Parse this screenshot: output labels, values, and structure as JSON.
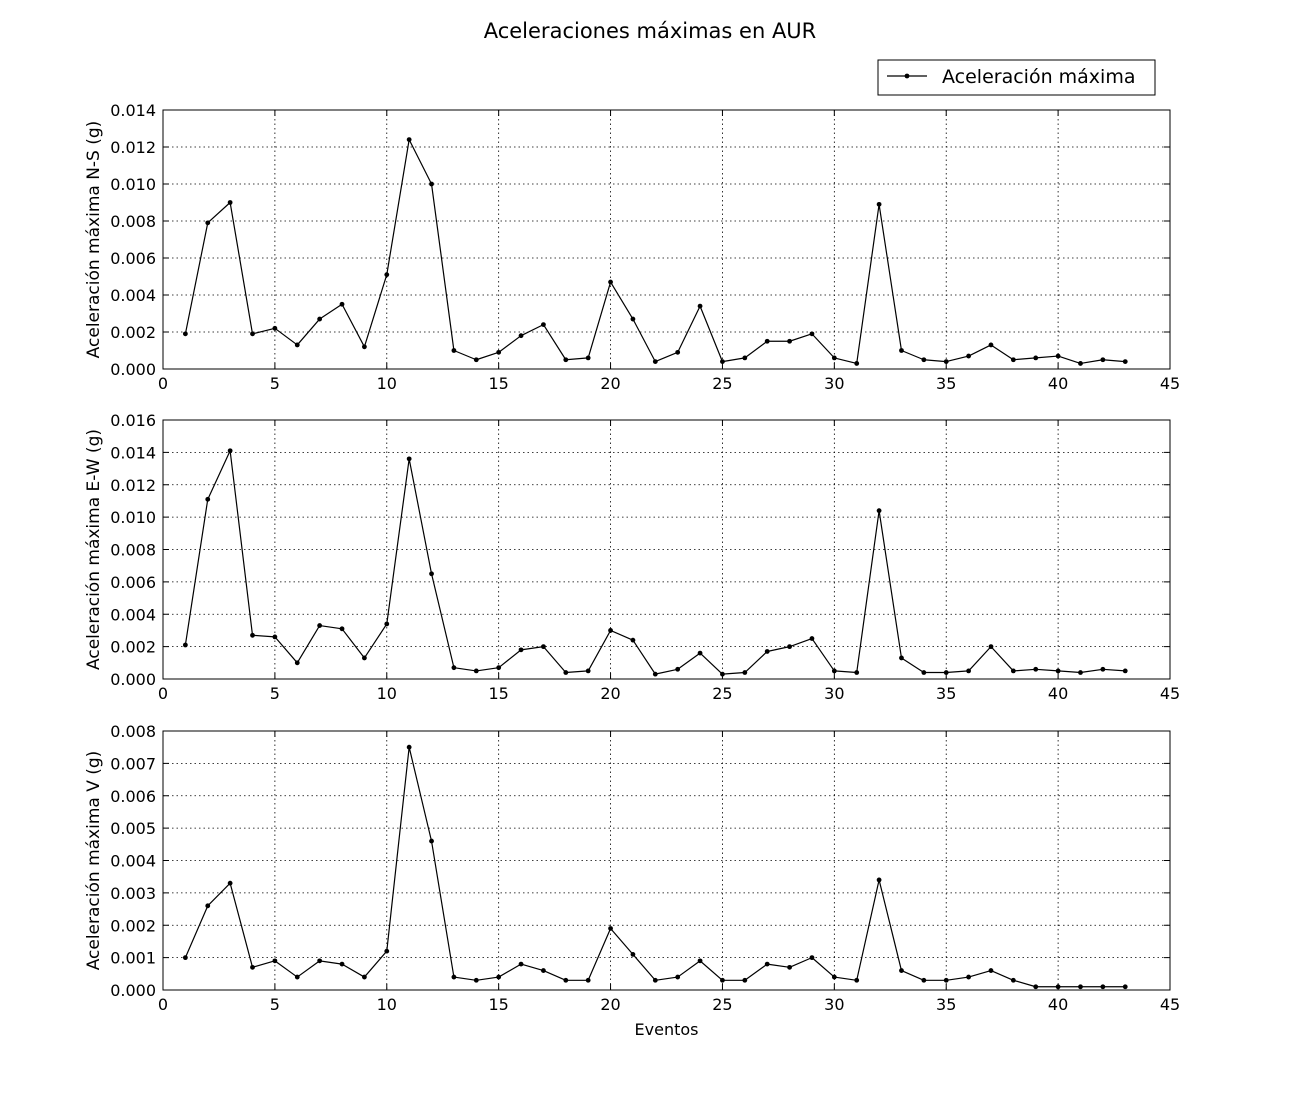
{
  "figure": {
    "title": "Aceleraciones máximas en AUR",
    "legend": {
      "label": "Aceleración máxima",
      "placement": "top-right"
    },
    "xlabel": "Eventos"
  },
  "chart_data": [
    {
      "type": "line",
      "title": "",
      "xlabel": "",
      "ylabel": "Aceleración máxima N-S (g)",
      "xlim": [
        0,
        45
      ],
      "ylim": [
        0,
        0.014
      ],
      "xticks": [
        0,
        5,
        10,
        15,
        20,
        25,
        30,
        35,
        40,
        45
      ],
      "yticks": [
        0.0,
        0.002,
        0.004,
        0.006,
        0.008,
        0.01,
        0.012,
        0.014
      ],
      "ytick_labels": [
        "0.000",
        "0.002",
        "0.004",
        "0.006",
        "0.008",
        "0.010",
        "0.012",
        "0.014"
      ],
      "grid": true,
      "x": [
        1,
        2,
        3,
        4,
        5,
        6,
        7,
        8,
        9,
        10,
        11,
        12,
        13,
        14,
        15,
        16,
        17,
        18,
        19,
        20,
        21,
        22,
        23,
        24,
        25,
        26,
        27,
        28,
        29,
        30,
        31,
        32,
        33,
        34,
        35,
        36,
        37,
        38,
        39,
        40,
        41,
        42,
        43
      ],
      "series": [
        {
          "name": "Aceleración máxima",
          "values": [
            0.0019,
            0.0079,
            0.009,
            0.0019,
            0.0022,
            0.0013,
            0.0027,
            0.0035,
            0.0012,
            0.0051,
            0.0124,
            0.01,
            0.001,
            0.0005,
            0.0009,
            0.0018,
            0.0024,
            0.0005,
            0.0006,
            0.0047,
            0.0027,
            0.0004,
            0.0009,
            0.0034,
            0.0004,
            0.0006,
            0.0015,
            0.0015,
            0.0019,
            0.0006,
            0.0003,
            0.0089,
            0.001,
            0.0005,
            0.0004,
            0.0007,
            0.0013,
            0.0005,
            0.0006,
            0.0007,
            0.0003,
            0.0005,
            0.0004
          ]
        }
      ]
    },
    {
      "type": "line",
      "title": "",
      "xlabel": "",
      "ylabel": "Aceleración máxima E-W (g)",
      "xlim": [
        0,
        45
      ],
      "ylim": [
        0,
        0.016
      ],
      "xticks": [
        0,
        5,
        10,
        15,
        20,
        25,
        30,
        35,
        40,
        45
      ],
      "yticks": [
        0.0,
        0.002,
        0.004,
        0.006,
        0.008,
        0.01,
        0.012,
        0.014,
        0.016
      ],
      "ytick_labels": [
        "0.000",
        "0.002",
        "0.004",
        "0.006",
        "0.008",
        "0.010",
        "0.012",
        "0.014",
        "0.016"
      ],
      "grid": true,
      "x": [
        1,
        2,
        3,
        4,
        5,
        6,
        7,
        8,
        9,
        10,
        11,
        12,
        13,
        14,
        15,
        16,
        17,
        18,
        19,
        20,
        21,
        22,
        23,
        24,
        25,
        26,
        27,
        28,
        29,
        30,
        31,
        32,
        33,
        34,
        35,
        36,
        37,
        38,
        39,
        40,
        41,
        42,
        43
      ],
      "series": [
        {
          "name": "Aceleración máxima",
          "values": [
            0.0021,
            0.0111,
            0.0141,
            0.0027,
            0.0026,
            0.001,
            0.0033,
            0.0031,
            0.0013,
            0.0034,
            0.0136,
            0.0065,
            0.0007,
            0.0005,
            0.0007,
            0.0018,
            0.002,
            0.0004,
            0.0005,
            0.003,
            0.0024,
            0.0003,
            0.0006,
            0.0016,
            0.0003,
            0.0004,
            0.0017,
            0.002,
            0.0025,
            0.0005,
            0.0004,
            0.0104,
            0.0013,
            0.0004,
            0.0004,
            0.0005,
            0.002,
            0.0005,
            0.0006,
            0.0005,
            0.0004,
            0.0006,
            0.0005
          ]
        }
      ]
    },
    {
      "type": "line",
      "title": "",
      "xlabel": "Eventos",
      "ylabel": "Aceleración máxima V (g)",
      "xlim": [
        0,
        45
      ],
      "ylim": [
        0,
        0.008
      ],
      "xticks": [
        0,
        5,
        10,
        15,
        20,
        25,
        30,
        35,
        40,
        45
      ],
      "yticks": [
        0.0,
        0.001,
        0.002,
        0.003,
        0.004,
        0.005,
        0.006,
        0.007,
        0.008
      ],
      "ytick_labels": [
        "0.000",
        "0.001",
        "0.002",
        "0.003",
        "0.004",
        "0.005",
        "0.006",
        "0.007",
        "0.008"
      ],
      "grid": true,
      "x": [
        1,
        2,
        3,
        4,
        5,
        6,
        7,
        8,
        9,
        10,
        11,
        12,
        13,
        14,
        15,
        16,
        17,
        18,
        19,
        20,
        21,
        22,
        23,
        24,
        25,
        26,
        27,
        28,
        29,
        30,
        31,
        32,
        33,
        34,
        35,
        36,
        37,
        38,
        39,
        40,
        41,
        42,
        43
      ],
      "series": [
        {
          "name": "Aceleración máxima",
          "values": [
            0.001,
            0.0026,
            0.0033,
            0.0007,
            0.0009,
            0.0004,
            0.0009,
            0.0008,
            0.0004,
            0.0012,
            0.0075,
            0.0046,
            0.0004,
            0.0003,
            0.0004,
            0.0008,
            0.0006,
            0.0003,
            0.0003,
            0.0019,
            0.0011,
            0.0003,
            0.0004,
            0.0009,
            0.0003,
            0.0003,
            0.0008,
            0.0007,
            0.001,
            0.0004,
            0.0003,
            0.0034,
            0.0006,
            0.0003,
            0.0003,
            0.0004,
            0.0006,
            0.0003,
            0.0001,
            0.0001,
            0.0001,
            0.0001,
            0.0001
          ]
        }
      ]
    }
  ]
}
